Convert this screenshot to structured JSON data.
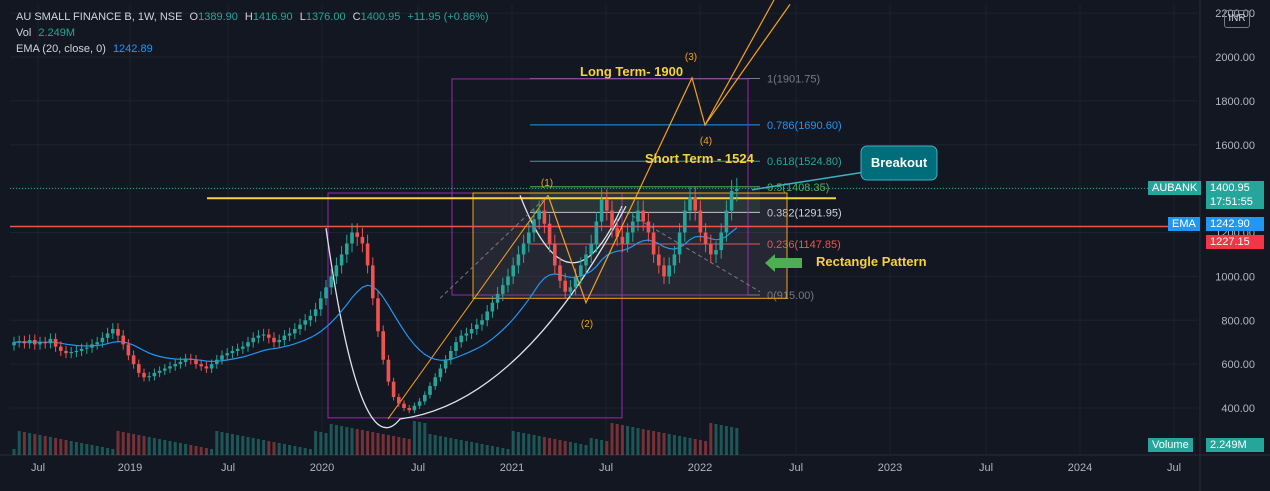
{
  "header": {
    "symbol": "AU SMALL FINANCE B, 1W, NSE",
    "o_label": "O",
    "o": "1389.90",
    "h_label": "H",
    "h": "1416.90",
    "l_label": "L",
    "l": "1376.00",
    "c_label": "C",
    "c": "1400.95",
    "change": "+11.95 (+0.86%)",
    "vol_label": "Vol",
    "vol": "2.249M",
    "ema_label": "EMA (20, close, 0)",
    "ema": "1242.89"
  },
  "currency": "INR",
  "colors": {
    "background": "#131722",
    "up": "#26a69a",
    "down": "#ef5350",
    "ema": "#2196f3",
    "fib": "#787b86",
    "annotation": "#f5d33a",
    "wave": "#f7a21b",
    "rectangle": "#9c27b0"
  },
  "price_tags": {
    "symbol_tag": "AUBANK",
    "last_price": "1400.95",
    "countdown": "17:51:55",
    "ema_tag": "EMA",
    "ema_value": "1242.90",
    "red_line_value": "1227.15",
    "volume_tag": "Volume",
    "volume_value": "2.249M"
  },
  "annotations": {
    "long_term": "Long Term- 1900",
    "short_term": "Short Term - 1524",
    "breakout": "Breakout",
    "rectangle_pattern": "Rectangle Pattern",
    "wave_1": "(1)",
    "wave_2": "(2)",
    "wave_3": "(3)",
    "wave_4": "(4)"
  },
  "fib_levels": [
    {
      "label": "1(1901.75)",
      "ratio": 1,
      "value": 1901.75,
      "color": "#787b86"
    },
    {
      "label": "0.786(1690.60)",
      "ratio": 0.786,
      "value": 1690.6,
      "color": "#2196f3"
    },
    {
      "label": "0.618(1524.80)",
      "ratio": 0.618,
      "value": 1524.8,
      "color": "#26a69a"
    },
    {
      "label": "0.5(1408.35)",
      "ratio": 0.5,
      "value": 1408.35,
      "color": "#4caf50"
    },
    {
      "label": "0.382(1291.95)",
      "ratio": 0.382,
      "value": 1291.95,
      "color": "#d1d4dc"
    },
    {
      "label": "0.236(1147.85)",
      "ratio": 0.236,
      "value": 1147.85,
      "color": "#ef5350"
    },
    {
      "label": "0(915.00)",
      "ratio": 0,
      "value": 915.0,
      "color": "#787b86"
    }
  ],
  "chart_data": {
    "type": "candlestick",
    "title": "AU SMALL FINANCE B, 1W, NSE",
    "x_tick_labels": [
      "Jul",
      "2019",
      "Jul",
      "2020",
      "Jul",
      "2021",
      "Jul",
      "2022",
      "Jul",
      "2023",
      "Jul",
      "2024",
      "Jul"
    ],
    "y_tick_labels": [
      "400.00",
      "600.00",
      "800.00",
      "1000.00",
      "1200.00",
      "1400.00",
      "1600.00",
      "1800.00",
      "2000.00",
      "2200.00"
    ],
    "ylim": [
      300,
      2230
    ],
    "grid": true,
    "horizontal_levels": [
      {
        "value": 1356,
        "color": "#f5d33a"
      },
      {
        "value": 1227.15,
        "color": "#ef5350"
      }
    ],
    "series": [
      {
        "kind": "weekly_close",
        "values": [
          700,
          705,
          695,
          710,
          690,
          700,
          695,
          715,
          680,
          660,
          650,
          655,
          660,
          670,
          675,
          690,
          700,
          720,
          740,
          760,
          730,
          690,
          640,
          600,
          560,
          540,
          545,
          560,
          570,
          580,
          590,
          600,
          610,
          625,
          620,
          600,
          590,
          580,
          600,
          620,
          640,
          650,
          660,
          670,
          680,
          700,
          720,
          730,
          735,
          720,
          700,
          710,
          730,
          740,
          760,
          780,
          800,
          820,
          850,
          900,
          950,
          1000,
          1050,
          1100,
          1150,
          1200,
          1180,
          1150,
          1050,
          900,
          750,
          620,
          520,
          450,
          420,
          400,
          390,
          410,
          430,
          460,
          500,
          540,
          580,
          620,
          660,
          700,
          730,
          740,
          760,
          780,
          800,
          840,
          880,
          920,
          960,
          1000,
          1050,
          1100,
          1150,
          1200,
          1260,
          1300,
          1240,
          1150,
          1050,
          980,
          930,
          950,
          1000,
          1050,
          1100,
          1150,
          1250,
          1350,
          1300,
          1220,
          1180,
          1150,
          1200,
          1250,
          1300,
          1250,
          1200,
          1100,
          1050,
          1000,
          1050,
          1100,
          1200,
          1300,
          1360,
          1300,
          1200,
          1150,
          1100,
          1120,
          1200,
          1300,
          1390,
          1400
        ]
      },
      {
        "kind": "ema_20",
        "name": "EMA (20, close, 0)",
        "last": 1242.89
      }
    ]
  }
}
